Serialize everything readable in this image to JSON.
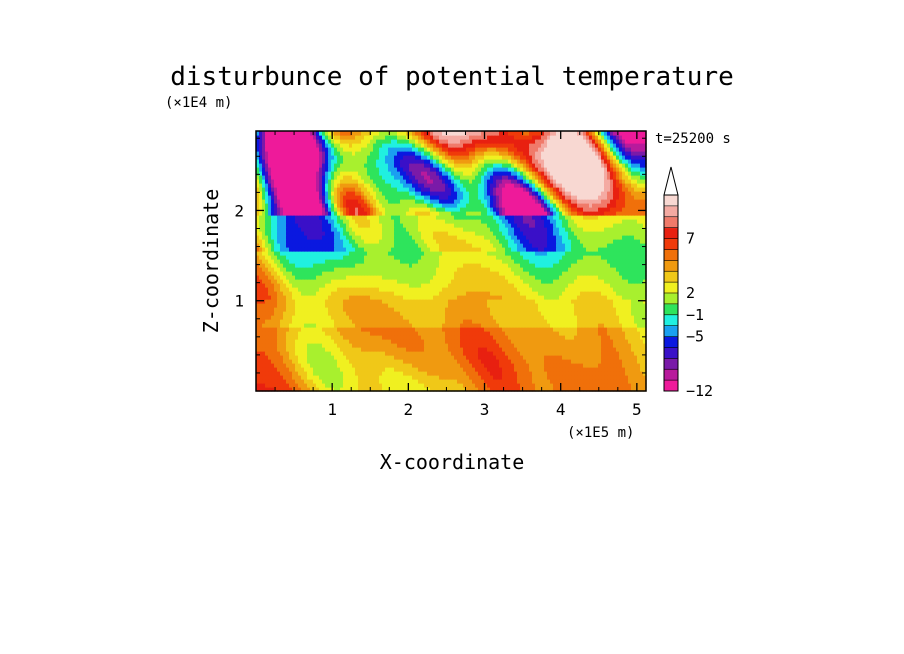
{
  "chart_data": {
    "type": "heatmap",
    "title": "disturbunce of potential temperature",
    "time_label": "t=25200 s",
    "xlabel": "X-coordinate",
    "ylabel": "Z-coordinate",
    "x_unit": "(×1E5 m)",
    "y_unit": "(×1E4 m)",
    "xlim": [
      0,
      5.12
    ],
    "ylim": [
      0,
      2.88
    ],
    "x_ticks": [
      1,
      2,
      3,
      4,
      5
    ],
    "x_tick_labels": [
      "1",
      "2",
      "3",
      "4",
      "5"
    ],
    "y_ticks": [
      1,
      2
    ],
    "y_tick_labels": [
      "1",
      "2"
    ],
    "colorbar": {
      "colors": [
        "#ee1a9a",
        "#b81a9c",
        "#7a1aa8",
        "#3a10c8",
        "#0a18e0",
        "#1aa0f0",
        "#20f0e0",
        "#2ee45c",
        "#a8f02e",
        "#f0f020",
        "#f0c818",
        "#f09a10",
        "#f0700a",
        "#f03a0a",
        "#e82010",
        "#f07a6a",
        "#f4aaa2",
        "#f8d8d2"
      ],
      "tick_labels": [
        "−12",
        "−5",
        "−1",
        "2",
        "7"
      ],
      "tick_boundaries": [
        0,
        5,
        7,
        9,
        14
      ],
      "extend_top": true
    },
    "field_description_levels": {
      "z": [
        0.15,
        0.45,
        0.8,
        1.1,
        1.4,
        1.65,
        1.95,
        2.25,
        2.55,
        2.8
      ],
      "dominant_level_index": [
        11,
        11,
        10,
        9,
        8,
        7,
        12,
        12,
        3,
        13
      ]
    }
  }
}
